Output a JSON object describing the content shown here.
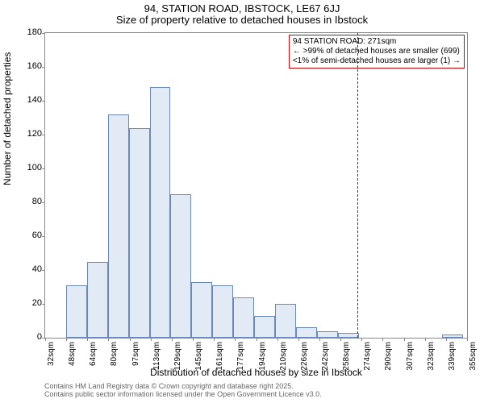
{
  "titles": {
    "main": "94, STATION ROAD, IBSTOCK, LE67 6JJ",
    "sub": "Size of property relative to detached houses in Ibstock"
  },
  "axes": {
    "ylabel": "Number of detached properties",
    "xlabel": "Distribution of detached houses by size in Ibstock",
    "ylim": [
      0,
      180
    ],
    "yticks": [
      0,
      20,
      40,
      60,
      80,
      100,
      120,
      140,
      160,
      180
    ],
    "xticks": [
      "32sqm",
      "48sqm",
      "64sqm",
      "80sqm",
      "97sqm",
      "113sqm",
      "129sqm",
      "145sqm",
      "161sqm",
      "177sqm",
      "194sqm",
      "210sqm",
      "226sqm",
      "242sqm",
      "258sqm",
      "274sqm",
      "290sqm",
      "307sqm",
      "323sqm",
      "339sqm",
      "355sqm"
    ]
  },
  "histogram": {
    "type": "histogram",
    "bin_width_sqm": 16,
    "x_start_sqm": 32,
    "x_end_sqm": 355,
    "values": [
      0,
      31,
      45,
      132,
      124,
      148,
      85,
      33,
      31,
      24,
      13,
      20,
      6,
      4,
      3,
      0,
      0,
      0,
      0,
      2,
      0
    ],
    "bar_fill": "#e2eaf6",
    "bar_border": "#6a88b8",
    "background_color": "#ffffff"
  },
  "marker": {
    "x_sqm": 271,
    "line_color": "#cc0000",
    "box_border": "#cc0000",
    "lines": {
      "l1": "94 STATION ROAD: 271sqm",
      "l2": "← >99% of detached houses are smaller (699)",
      "l3": "<1% of semi-detached houses are larger (1) →"
    }
  },
  "footer": {
    "l1": "Contains HM Land Registry data © Crown copyright and database right 2025.",
    "l2": "Contains public sector information licensed under the Open Government Licence v3.0."
  },
  "style": {
    "axis_fontsize": 12,
    "tick_fontsize": 11,
    "title_fontsize": 13,
    "footer_fontsize": 9,
    "footer_color": "#666666"
  }
}
